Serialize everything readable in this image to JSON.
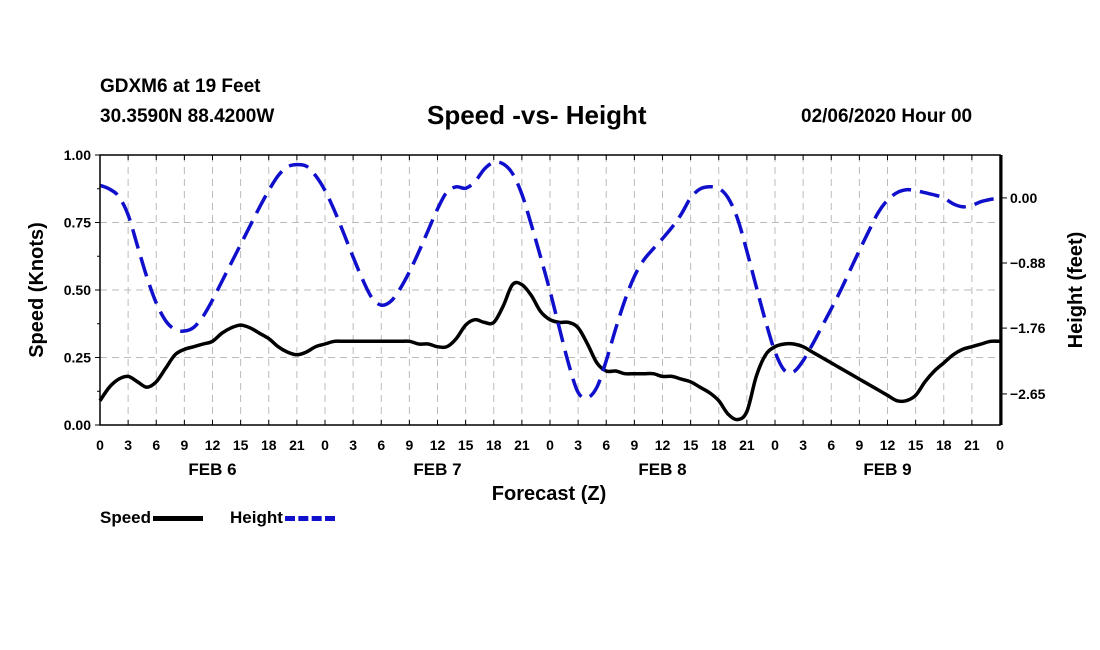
{
  "header": {
    "station": "GDXM6 at 19 Feet",
    "coordinates": "30.3590N 88.4200W",
    "title": "Speed -vs- Height",
    "datetime": "02/06/2020 Hour 00"
  },
  "legend": {
    "speed": "Speed",
    "height": "Height"
  },
  "colors": {
    "speed": "#000000",
    "height": "#1010cc",
    "grid": "#bbbbbb"
  },
  "chart_data": {
    "type": "line",
    "title": "Speed -vs- Height",
    "xlabel": "Forecast (Z)",
    "ylabel_left": "Speed (Knots)",
    "ylabel_right": "Height (feet)",
    "x_unit": "hours from 02/06/2020 00Z",
    "xlim": [
      0,
      96
    ],
    "ylim_left": [
      0,
      1.0
    ],
    "ylim_right": [
      -3.07,
      0.58
    ],
    "left_ticks": [
      "0.00",
      "0.25",
      "0.50",
      "0.75",
      "1.00"
    ],
    "right_ticks": [
      {
        "value": 0.0,
        "label": "0.00"
      },
      {
        "value": -0.88,
        "label": "−0.88"
      },
      {
        "value": -1.76,
        "label": "−1.76"
      },
      {
        "value": -2.65,
        "label": "−2.65"
      }
    ],
    "x_tick_labels": [
      "0",
      "3",
      "6",
      "9",
      "12",
      "15",
      "18",
      "21",
      "0",
      "3",
      "6",
      "9",
      "12",
      "15",
      "18",
      "21",
      "0",
      "3",
      "6",
      "9",
      "12",
      "15",
      "18",
      "21",
      "0",
      "3",
      "6",
      "9",
      "12",
      "15",
      "18",
      "21",
      "0"
    ],
    "day_labels": [
      {
        "hour": 12,
        "label": "FEB 6"
      },
      {
        "hour": 36,
        "label": "FEB 7"
      },
      {
        "hour": 60,
        "label": "FEB 8"
      },
      {
        "hour": 84,
        "label": "FEB 9"
      }
    ],
    "grid": true,
    "series": [
      {
        "name": "Speed",
        "axis": "left",
        "style": "solid",
        "x": [
          0,
          1,
          2,
          3,
          4,
          5,
          6,
          7,
          8,
          9,
          10,
          11,
          12,
          13,
          14,
          15,
          16,
          17,
          18,
          19,
          20,
          21,
          22,
          23,
          24,
          25,
          26,
          27,
          28,
          29,
          30,
          31,
          32,
          33,
          34,
          35,
          36,
          37,
          38,
          39,
          40,
          41,
          42,
          43,
          44,
          45,
          46,
          47,
          48,
          49,
          50,
          51,
          52,
          53,
          54,
          55,
          56,
          57,
          58,
          59,
          60,
          61,
          62,
          63,
          64,
          65,
          66,
          67,
          68,
          69,
          70,
          71,
          72,
          73,
          74,
          75,
          76,
          77,
          78,
          79,
          80,
          81,
          82,
          83,
          84,
          85,
          86,
          87,
          88,
          89,
          90,
          91,
          92,
          93,
          94,
          95,
          96
        ],
        "values": [
          0.09,
          0.14,
          0.17,
          0.18,
          0.16,
          0.14,
          0.16,
          0.21,
          0.26,
          0.28,
          0.29,
          0.3,
          0.31,
          0.34,
          0.36,
          0.37,
          0.36,
          0.34,
          0.32,
          0.29,
          0.27,
          0.26,
          0.27,
          0.29,
          0.3,
          0.31,
          0.31,
          0.31,
          0.31,
          0.31,
          0.31,
          0.31,
          0.31,
          0.31,
          0.3,
          0.3,
          0.29,
          0.29,
          0.32,
          0.37,
          0.39,
          0.38,
          0.38,
          0.44,
          0.52,
          0.52,
          0.48,
          0.42,
          0.39,
          0.38,
          0.38,
          0.36,
          0.3,
          0.23,
          0.2,
          0.2,
          0.19,
          0.19,
          0.19,
          0.19,
          0.18,
          0.18,
          0.17,
          0.16,
          0.14,
          0.12,
          0.09,
          0.04,
          0.02,
          0.05,
          0.18,
          0.26,
          0.29,
          0.3,
          0.3,
          0.29,
          0.27,
          0.25,
          0.23,
          0.21,
          0.19,
          0.17,
          0.15,
          0.13,
          0.11,
          0.09,
          0.09,
          0.11,
          0.16,
          0.2,
          0.23,
          0.26,
          0.28,
          0.29,
          0.3,
          0.31,
          0.31
        ]
      },
      {
        "name": "Height",
        "axis": "right",
        "style": "dashed",
        "x": [
          0,
          1,
          2,
          3,
          4,
          5,
          6,
          7,
          8,
          9,
          10,
          11,
          12,
          13,
          14,
          15,
          16,
          17,
          18,
          19,
          20,
          21,
          22,
          23,
          24,
          25,
          26,
          27,
          28,
          29,
          30,
          31,
          32,
          33,
          34,
          35,
          36,
          37,
          38,
          39,
          40,
          41,
          42,
          43,
          44,
          45,
          46,
          47,
          48,
          49,
          50,
          51,
          52,
          53,
          54,
          55,
          56,
          57,
          58,
          59,
          60,
          61,
          62,
          63,
          64,
          65,
          66,
          67,
          68,
          69,
          70,
          71,
          72,
          73,
          74,
          75,
          76,
          77,
          78,
          79,
          80,
          81,
          82,
          83,
          84,
          85,
          86,
          87,
          88,
          89,
          90,
          91,
          92,
          93,
          94,
          95,
          96
        ],
        "values": [
          0.17,
          0.12,
          0.02,
          -0.23,
          -0.65,
          -1.07,
          -1.42,
          -1.66,
          -1.78,
          -1.8,
          -1.75,
          -1.6,
          -1.38,
          -1.13,
          -0.88,
          -0.63,
          -0.38,
          -0.13,
          0.1,
          0.3,
          0.42,
          0.45,
          0.43,
          0.3,
          0.1,
          -0.17,
          -0.48,
          -0.8,
          -1.1,
          -1.35,
          -1.45,
          -1.4,
          -1.23,
          -1.0,
          -0.73,
          -0.44,
          -0.15,
          0.08,
          0.15,
          0.13,
          0.22,
          0.39,
          0.48,
          0.46,
          0.33,
          0.05,
          -0.36,
          -0.8,
          -1.26,
          -1.76,
          -2.25,
          -2.63,
          -2.7,
          -2.56,
          -2.2,
          -1.77,
          -1.38,
          -1.06,
          -0.84,
          -0.69,
          -0.55,
          -0.4,
          -0.22,
          0.0,
          0.12,
          0.15,
          0.13,
          0.0,
          -0.28,
          -0.72,
          -1.2,
          -1.67,
          -2.08,
          -2.33,
          -2.35,
          -2.2,
          -1.98,
          -1.74,
          -1.5,
          -1.25,
          -0.98,
          -0.71,
          -0.45,
          -0.2,
          -0.03,
          0.07,
          0.11,
          0.1,
          0.07,
          0.04,
          0.0,
          -0.08,
          -0.12,
          -0.1,
          -0.05,
          -0.02,
          0.0
        ]
      }
    ]
  }
}
